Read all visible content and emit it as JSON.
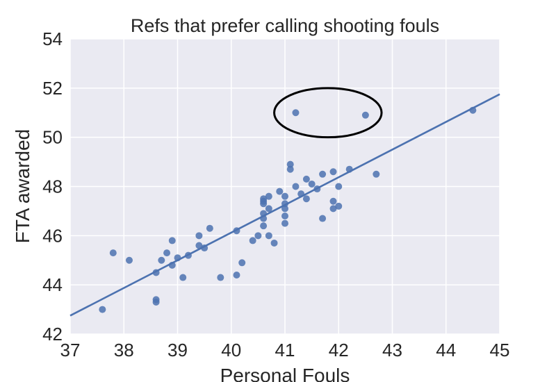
{
  "chart_data": {
    "type": "scatter",
    "title": "Refs that prefer calling shooting fouls",
    "xlabel": "Personal Fouls",
    "ylabel": "FTA awarded",
    "xlim": [
      37,
      45
    ],
    "ylim": [
      42,
      54
    ],
    "xticks": [
      "37",
      "38",
      "39",
      "40",
      "41",
      "42",
      "43",
      "44",
      "45"
    ],
    "yticks": [
      "42",
      "44",
      "46",
      "48",
      "50",
      "52",
      "54"
    ],
    "grid": true,
    "background_color": "#eaeaf2",
    "point_color": "#4c72b0",
    "line_color": "#4c72b0",
    "points": [
      [
        37.6,
        43.0
      ],
      [
        37.8,
        45.3
      ],
      [
        38.1,
        45.0
      ],
      [
        38.6,
        43.4
      ],
      [
        38.6,
        43.3
      ],
      [
        38.6,
        44.5
      ],
      [
        38.7,
        45.0
      ],
      [
        38.8,
        45.3
      ],
      [
        38.9,
        44.8
      ],
      [
        38.9,
        45.8
      ],
      [
        39.0,
        45.1
      ],
      [
        39.1,
        44.3
      ],
      [
        39.2,
        45.2
      ],
      [
        39.4,
        46.0
      ],
      [
        39.4,
        45.6
      ],
      [
        39.5,
        45.5
      ],
      [
        39.6,
        46.3
      ],
      [
        39.8,
        44.3
      ],
      [
        40.1,
        44.4
      ],
      [
        40.1,
        46.2
      ],
      [
        40.2,
        44.9
      ],
      [
        40.4,
        45.8
      ],
      [
        40.5,
        46.0
      ],
      [
        40.6,
        46.4
      ],
      [
        40.6,
        46.7
      ],
      [
        40.6,
        46.9
      ],
      [
        40.6,
        47.3
      ],
      [
        40.6,
        47.4
      ],
      [
        40.6,
        47.5
      ],
      [
        40.7,
        47.1
      ],
      [
        40.7,
        47.6
      ],
      [
        40.7,
        46.0
      ],
      [
        40.8,
        45.7
      ],
      [
        40.9,
        47.8
      ],
      [
        41.0,
        47.6
      ],
      [
        41.0,
        47.3
      ],
      [
        41.0,
        47.1
      ],
      [
        41.0,
        46.8
      ],
      [
        41.0,
        46.5
      ],
      [
        41.1,
        48.9
      ],
      [
        41.1,
        48.7
      ],
      [
        41.2,
        48.0
      ],
      [
        41.3,
        47.7
      ],
      [
        41.4,
        48.3
      ],
      [
        41.4,
        47.5
      ],
      [
        41.5,
        48.1
      ],
      [
        41.6,
        47.9
      ],
      [
        41.7,
        48.5
      ],
      [
        41.7,
        46.7
      ],
      [
        41.9,
        48.6
      ],
      [
        41.9,
        47.4
      ],
      [
        41.9,
        47.1
      ],
      [
        42.0,
        48.0
      ],
      [
        42.0,
        47.2
      ],
      [
        42.2,
        48.7
      ],
      [
        42.7,
        48.5
      ],
      [
        41.2,
        51.0
      ],
      [
        42.5,
        50.9
      ],
      [
        44.5,
        51.1
      ]
    ],
    "regression_line": [
      [
        37,
        42.75
      ],
      [
        45,
        51.75
      ]
    ],
    "highlight_ellipse": {
      "cx": 41.8,
      "cy": 51.0,
      "rx": 1.0,
      "ry": 1.0
    }
  }
}
